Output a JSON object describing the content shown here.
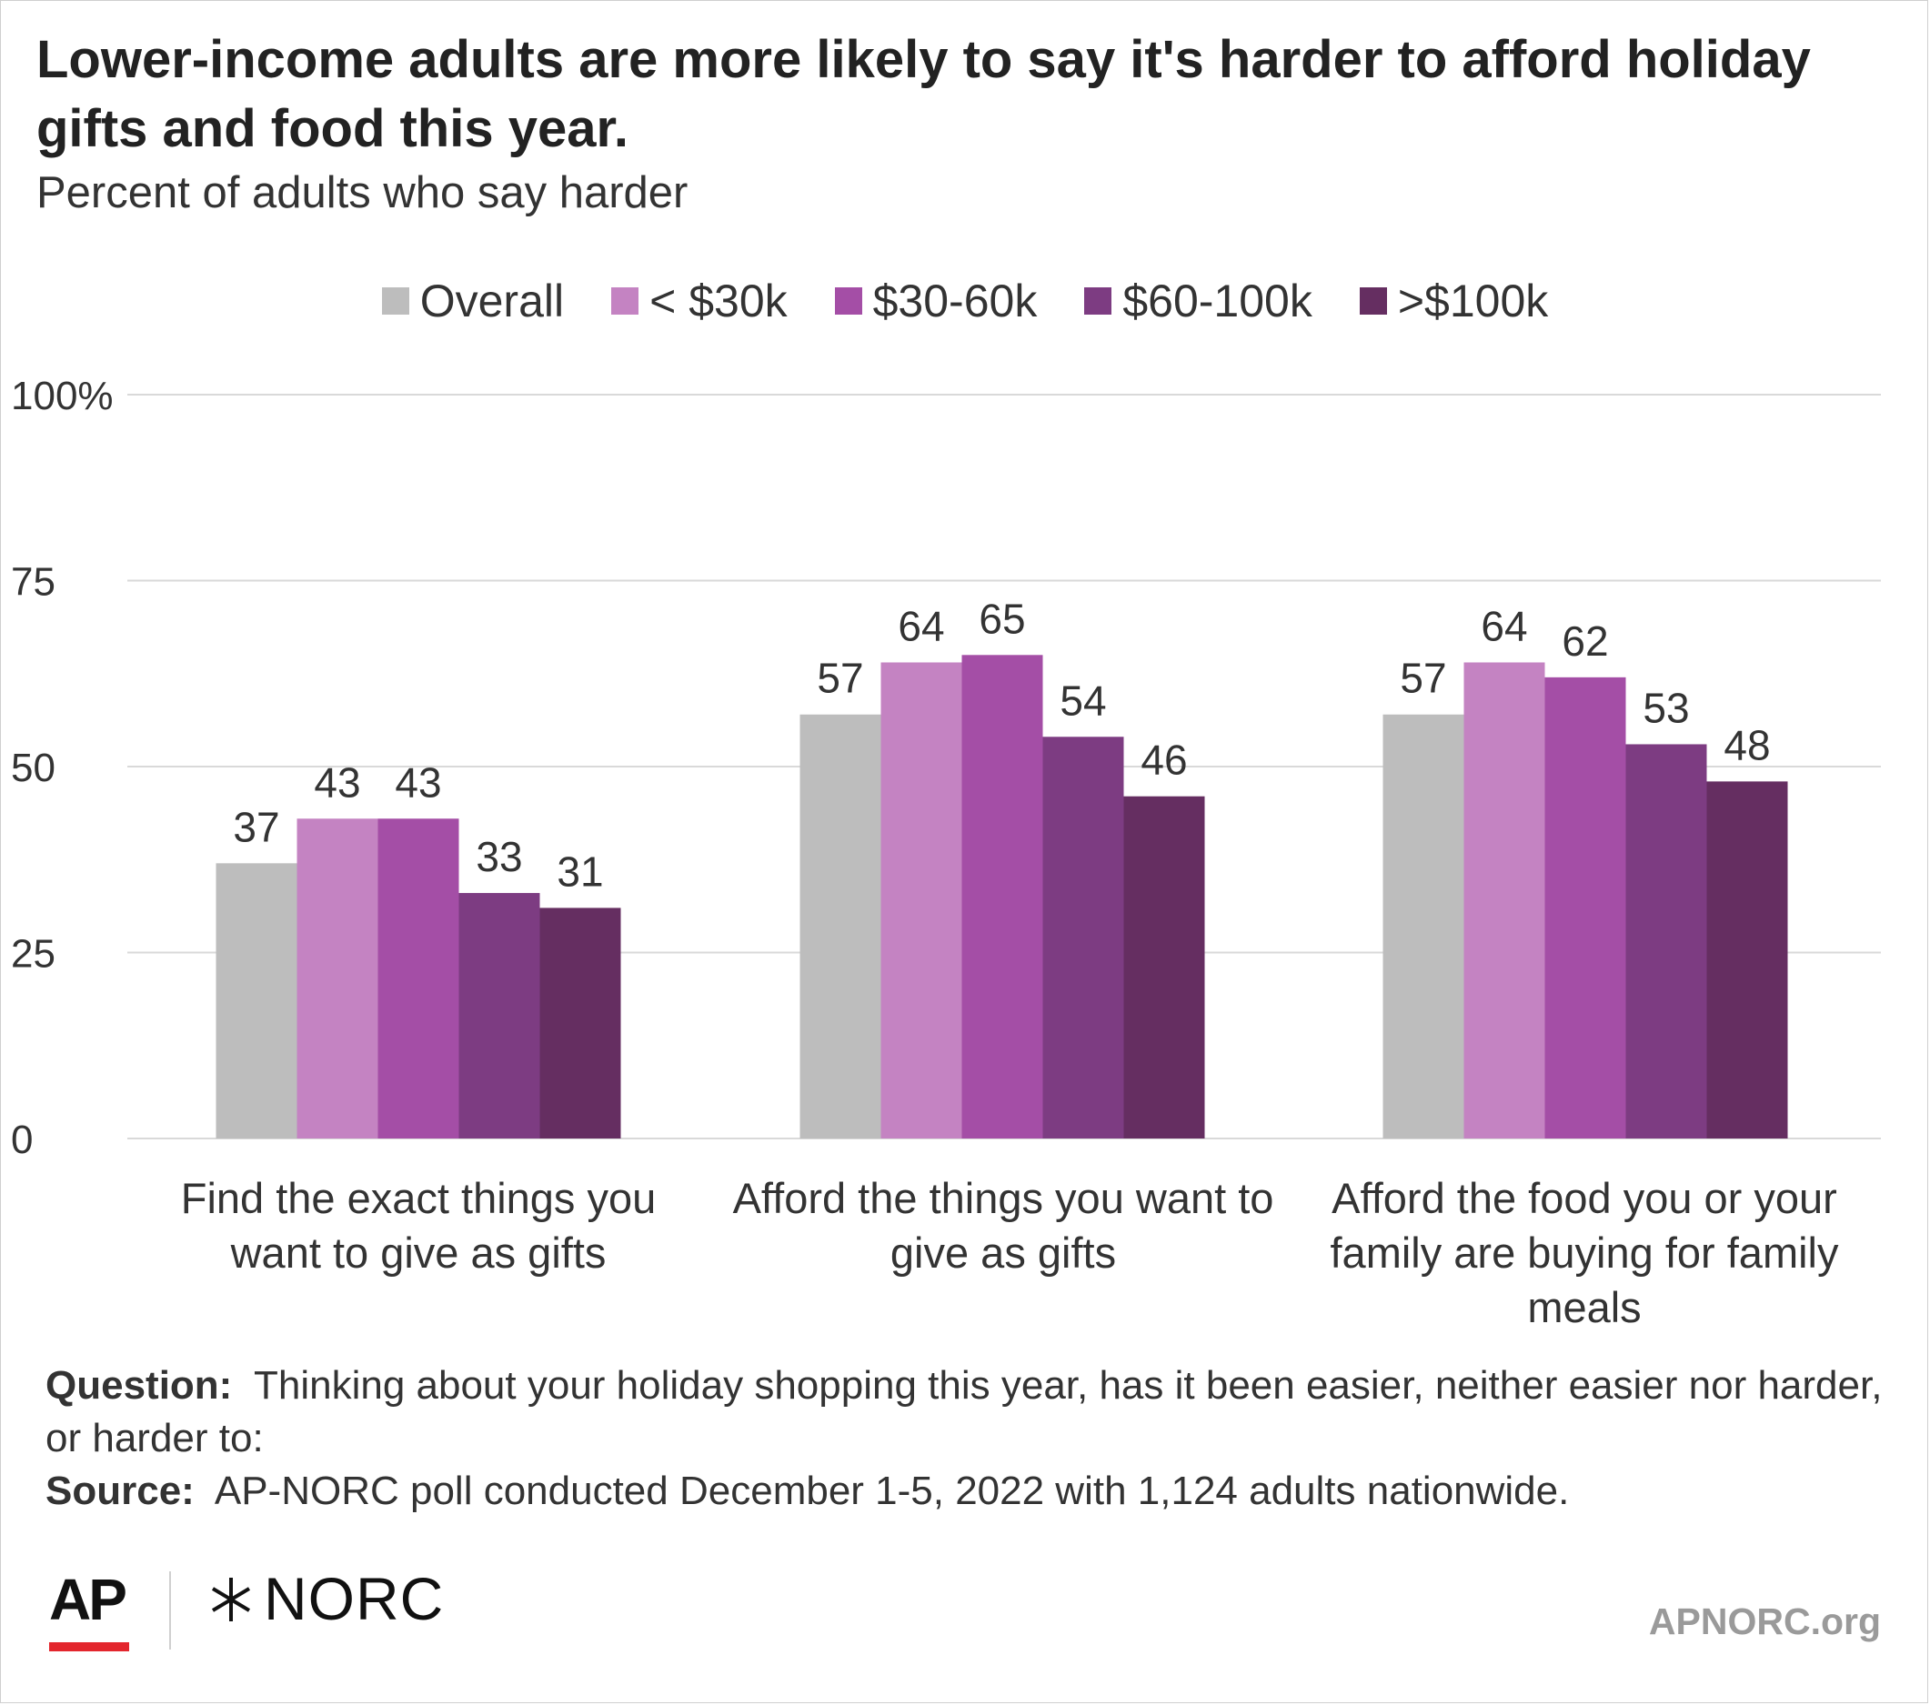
{
  "title": "Lower-income adults are more likely to say it's harder to afford holiday gifts and food this year.",
  "subtitle": "Percent of adults who say harder",
  "chart_data": {
    "type": "bar",
    "categories": [
      "Find the exact things you want to give as gifts",
      "Afford the things you want to give as gifts",
      "Afford the food you or your family are buying for family meals"
    ],
    "series": [
      {
        "name": "Overall",
        "color": "#bdbdbd",
        "values": [
          37,
          57,
          57
        ]
      },
      {
        "name": "< $30k",
        "color": "#c483c2",
        "values": [
          43,
          64,
          64
        ]
      },
      {
        "name": "$30-60k",
        "color": "#a44ea6",
        "values": [
          43,
          65,
          62
        ]
      },
      {
        "name": "$60-100k",
        "color": "#7d3c82",
        "values": [
          33,
          54,
          53
        ]
      },
      {
        "name": ">$100k",
        "color": "#652e61",
        "values": [
          31,
          46,
          48
        ]
      }
    ],
    "yticks": [
      "0",
      "25",
      "50",
      "75",
      "100%"
    ],
    "ylim": [
      0,
      100
    ],
    "grid": true,
    "legend": "top-center"
  },
  "notes": {
    "question_label": "Question:",
    "question_text": "Thinking about your holiday shopping this year, has it been easier, neither easier nor harder, or harder to:",
    "source_label": "Source:",
    "source_text": "AP-NORC poll conducted December 1-5, 2022 with 1,124 adults nationwide."
  },
  "footer": {
    "ap_logo": "AP",
    "norc_logo": "NORC",
    "site": "APNORC.org"
  }
}
